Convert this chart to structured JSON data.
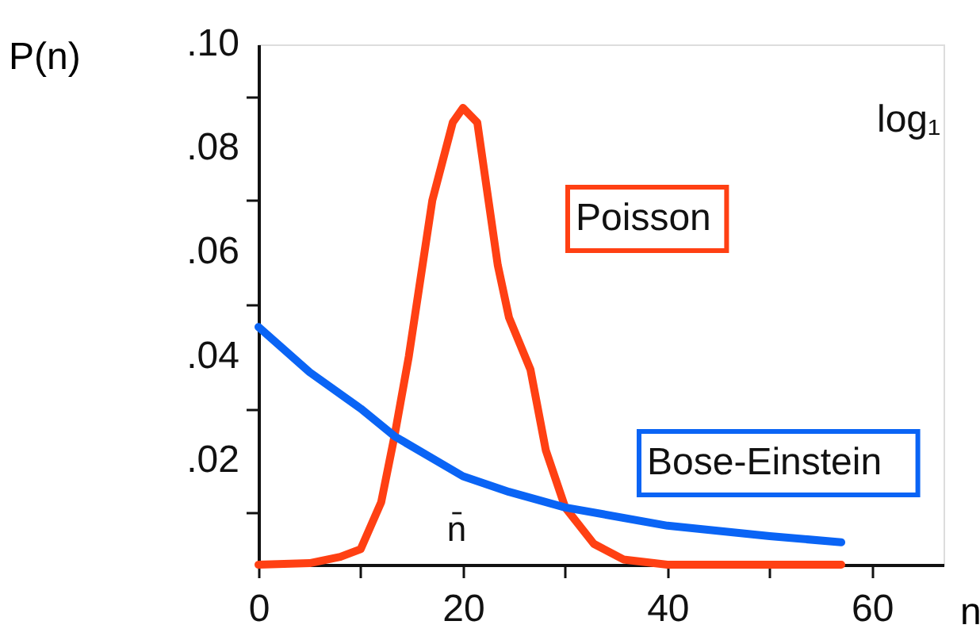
{
  "chart_data": {
    "type": "line",
    "xlabel": "n",
    "ylabel": "P(n)",
    "xlim": [
      0,
      67
    ],
    "ylim": [
      0,
      0.1
    ],
    "xticks": [
      0,
      {
        "value": 10,
        "label": null
      },
      20,
      {
        "value": 30,
        "label": null
      },
      40,
      {
        "value": 50,
        "label": null
      },
      60
    ],
    "yticks": [
      {
        "value": 0.01,
        "label": null
      },
      {
        "value": 0.02,
        "label": ".02"
      },
      {
        "value": 0.03,
        "label": null
      },
      {
        "value": 0.04,
        "label": ".04"
      },
      {
        "value": 0.05,
        "label": null
      },
      {
        "value": 0.06,
        "label": ".06"
      },
      {
        "value": 0.07,
        "label": null
      },
      {
        "value": 0.08,
        "label": ".08"
      },
      {
        "value": 0.09,
        "label": null
      },
      {
        "value": 0.1,
        "label": ".10"
      }
    ],
    "grid": false,
    "marker": "none",
    "line_style": "solid",
    "series": [
      {
        "name": "Poisson",
        "color": "#ff4013",
        "x": [
          0,
          5,
          8,
          10,
          12,
          13.3,
          14.7,
          17,
          19,
          20,
          21.4,
          23.4,
          24.5,
          26.6,
          28.1,
          30,
          32.8,
          35.7,
          40,
          57
        ],
        "values": [
          0,
          0.0003,
          0.0015,
          0.003,
          0.012,
          0.0247,
          0.04,
          0.07,
          0.085,
          0.0878,
          0.085,
          0.0576,
          0.0475,
          0.0375,
          0.022,
          0.011,
          0.004,
          0.001,
          0,
          0
        ]
      },
      {
        "name": "Bose-Einstein",
        "color": "#0a64f5",
        "x": [
          0,
          5,
          10,
          13.3,
          20,
          24.5,
          30,
          40,
          50,
          57
        ],
        "values": [
          0.0457,
          0.037,
          0.03,
          0.0247,
          0.017,
          0.014,
          0.011,
          0.0075,
          0.0055,
          0.0043
        ]
      }
    ],
    "annotations": [
      "n̄",
      "log₁"
    ]
  }
}
